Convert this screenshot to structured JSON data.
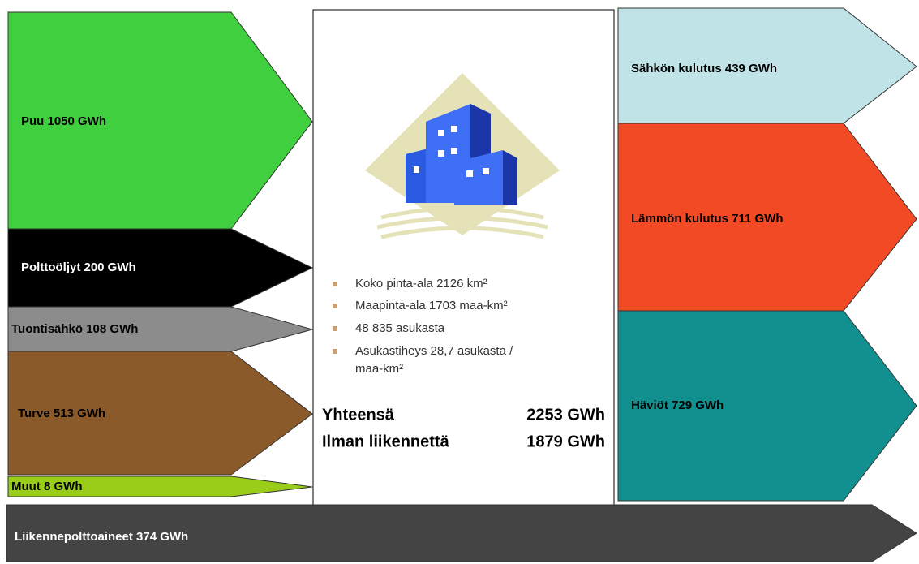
{
  "inputs": [
    {
      "label": "Puu 1050 GWh"
    },
    {
      "label": "Polttoöljyt 200 GWh"
    },
    {
      "label": "Tuontisähkö 108 GWh"
    },
    {
      "label": "Turve 513 GWh"
    },
    {
      "label": "Muut 8 GWh"
    }
  ],
  "outputs": [
    {
      "label": "Sähkön kulutus 439 GWh"
    },
    {
      "label": "Lämmön kulutus 711 GWh"
    },
    {
      "label": "Häviöt 729 GWh"
    }
  ],
  "transport": {
    "label": "Liikennepolttoaineet 374 GWh"
  },
  "center": {
    "bullets": [
      "Koko pinta-ala 2126 km²",
      "Maapinta-ala 1703 maa-km²",
      "48 835 asukasta",
      "Asukastiheys 28,7 asukasta /",
      "maa-km²"
    ],
    "total_label": "Yhteensä",
    "total_value": "2253 GWh",
    "excl_label": "Ilman liikennettä",
    "excl_value": "1879 GWh"
  }
}
